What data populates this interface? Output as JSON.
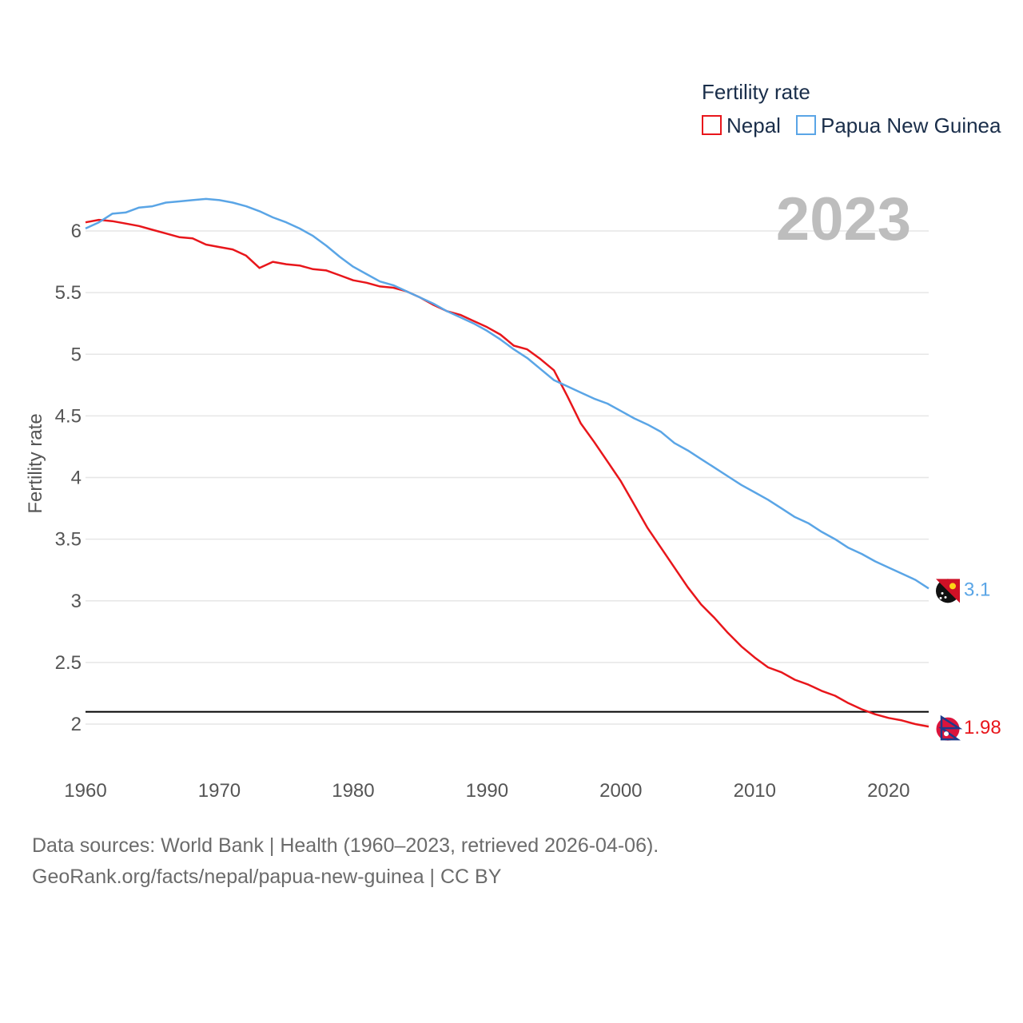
{
  "chart_data": {
    "type": "line",
    "ylabel": "Fertility rate",
    "legend": {
      "title": "Fertility rate",
      "position": "top-right"
    },
    "current_year": "2023",
    "reference_line": 2.1,
    "ylim": [
      1.8,
      6.35
    ],
    "xlim": [
      1960,
      2023
    ],
    "y_ticks": [
      "2",
      "2.5",
      "3",
      "3.5",
      "4",
      "4.5",
      "5",
      "5.5",
      "6"
    ],
    "x_ticks": [
      "1960",
      "1970",
      "1980",
      "1990",
      "2000",
      "2010",
      "2020"
    ],
    "x": [
      1960,
      1961,
      1962,
      1963,
      1964,
      1965,
      1966,
      1967,
      1968,
      1969,
      1970,
      1971,
      1972,
      1973,
      1974,
      1975,
      1976,
      1977,
      1978,
      1979,
      1980,
      1981,
      1982,
      1983,
      1984,
      1985,
      1986,
      1987,
      1988,
      1989,
      1990,
      1991,
      1992,
      1993,
      1994,
      1995,
      1996,
      1997,
      1998,
      1999,
      2000,
      2001,
      2002,
      2003,
      2004,
      2005,
      2006,
      2007,
      2008,
      2009,
      2010,
      2011,
      2012,
      2013,
      2014,
      2015,
      2016,
      2017,
      2018,
      2019,
      2020,
      2021,
      2022,
      2023
    ],
    "series": [
      {
        "name": "Nepal",
        "color": "#e8161b",
        "end_label": "1.98",
        "values": [
          6.07,
          6.09,
          6.08,
          6.06,
          6.04,
          6.01,
          5.98,
          5.95,
          5.94,
          5.89,
          5.87,
          5.85,
          5.8,
          5.7,
          5.75,
          5.73,
          5.72,
          5.69,
          5.68,
          5.64,
          5.6,
          5.58,
          5.55,
          5.54,
          5.51,
          5.46,
          5.4,
          5.35,
          5.32,
          5.27,
          5.22,
          5.16,
          5.07,
          5.04,
          4.96,
          4.87,
          4.66,
          4.44,
          4.29,
          4.13,
          3.97,
          3.78,
          3.59,
          3.43,
          3.27,
          3.11,
          2.97,
          2.86,
          2.74,
          2.63,
          2.54,
          2.46,
          2.42,
          2.36,
          2.32,
          2.27,
          2.23,
          2.17,
          2.12,
          2.08,
          2.05,
          2.03,
          2.0,
          1.98
        ]
      },
      {
        "name": "Papua New Guinea",
        "color": "#5aa5e6",
        "end_label": "3.1",
        "values": [
          6.02,
          6.07,
          6.14,
          6.15,
          6.19,
          6.2,
          6.23,
          6.24,
          6.25,
          6.26,
          6.25,
          6.23,
          6.2,
          6.16,
          6.11,
          6.07,
          6.02,
          5.96,
          5.88,
          5.79,
          5.71,
          5.65,
          5.59,
          5.56,
          5.51,
          5.46,
          5.41,
          5.35,
          5.3,
          5.25,
          5.19,
          5.12,
          5.04,
          4.97,
          4.88,
          4.79,
          4.74,
          4.69,
          4.64,
          4.6,
          4.54,
          4.48,
          4.43,
          4.37,
          4.28,
          4.22,
          4.15,
          4.08,
          4.01,
          3.94,
          3.88,
          3.82,
          3.75,
          3.68,
          3.63,
          3.56,
          3.5,
          3.43,
          3.38,
          3.32,
          3.27,
          3.22,
          3.17,
          3.1
        ]
      }
    ]
  },
  "footer": {
    "line1": "Data sources: World Bank | Health (1960–2023, retrieved 2026-04-06).",
    "line2": "GeoRank.org/facts/nepal/papua-new-guinea | CC BY"
  }
}
